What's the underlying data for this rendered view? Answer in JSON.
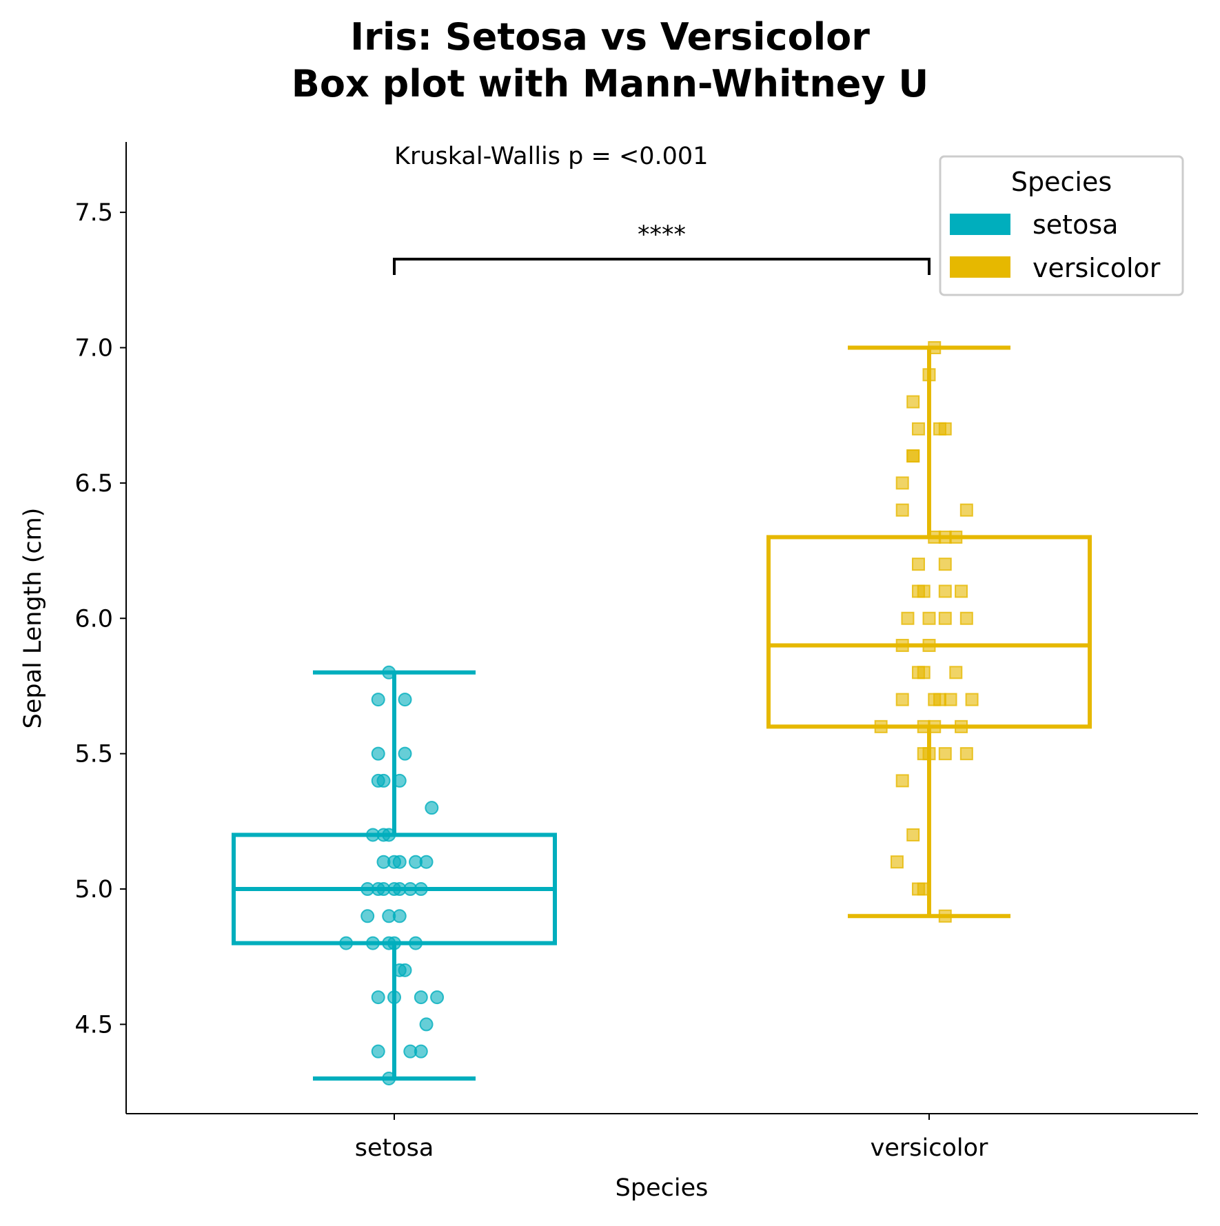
{
  "chart_data": {
    "type": "box",
    "title_lines": [
      "Iris: Setosa vs Versicolor",
      "Box plot with Mann-Whitney U"
    ],
    "xlabel": "Species",
    "ylabel": "Sepal Length (cm)",
    "categories": [
      "setosa",
      "versicolor"
    ],
    "ylim": [
      4.17,
      7.76
    ],
    "yticks": [
      4.5,
      5.0,
      5.5,
      6.0,
      6.5,
      7.0,
      7.5
    ],
    "ytick_labels": [
      "4.5",
      "5.0",
      "5.5",
      "6.0",
      "6.5",
      "7.0",
      "7.5"
    ],
    "grid": false,
    "legend": {
      "title": "Species",
      "placement": "top-right",
      "entries": [
        "setosa",
        "versicolor"
      ]
    },
    "annotations": {
      "overall_test": "Kruskal-Wallis p = <0.001",
      "pairwise_significance": "****"
    },
    "colors": {
      "setosa": "#00aebd",
      "versicolor": "#e6b800"
    },
    "series": [
      {
        "name": "setosa",
        "box": {
          "whisker_low": 4.3,
          "q1": 4.8,
          "median": 5.0,
          "q3": 5.2,
          "whisker_high": 5.8
        },
        "marker": "circle",
        "points": [
          {
            "x": -0.01,
            "y": 5.8
          },
          {
            "x": -0.03,
            "y": 5.7
          },
          {
            "x": 0.02,
            "y": 5.7
          },
          {
            "x": -0.03,
            "y": 5.5
          },
          {
            "x": 0.02,
            "y": 5.5
          },
          {
            "x": -0.03,
            "y": 5.4
          },
          {
            "x": -0.02,
            "y": 5.4
          },
          {
            "x": 0.01,
            "y": 5.4
          },
          {
            "x": 0.07,
            "y": 5.3
          },
          {
            "x": -0.04,
            "y": 5.2
          },
          {
            "x": -0.02,
            "y": 5.2
          },
          {
            "x": -0.01,
            "y": 5.2
          },
          {
            "x": -0.02,
            "y": 5.1
          },
          {
            "x": 0.0,
            "y": 5.1
          },
          {
            "x": 0.01,
            "y": 5.1
          },
          {
            "x": 0.04,
            "y": 5.1
          },
          {
            "x": 0.06,
            "y": 5.1
          },
          {
            "x": -0.05,
            "y": 5.0
          },
          {
            "x": -0.03,
            "y": 5.0
          },
          {
            "x": -0.02,
            "y": 5.0
          },
          {
            "x": 0.0,
            "y": 5.0
          },
          {
            "x": 0.01,
            "y": 5.0
          },
          {
            "x": 0.03,
            "y": 5.0
          },
          {
            "x": 0.05,
            "y": 5.0
          },
          {
            "x": -0.05,
            "y": 4.9
          },
          {
            "x": -0.01,
            "y": 4.9
          },
          {
            "x": 0.01,
            "y": 4.9
          },
          {
            "x": -0.09,
            "y": 4.8
          },
          {
            "x": -0.04,
            "y": 4.8
          },
          {
            "x": -0.01,
            "y": 4.8
          },
          {
            "x": 0.0,
            "y": 4.8
          },
          {
            "x": 0.04,
            "y": 4.8
          },
          {
            "x": 0.01,
            "y": 4.7
          },
          {
            "x": 0.02,
            "y": 4.7
          },
          {
            "x": -0.03,
            "y": 4.6
          },
          {
            "x": 0.0,
            "y": 4.6
          },
          {
            "x": 0.05,
            "y": 4.6
          },
          {
            "x": 0.08,
            "y": 4.6
          },
          {
            "x": 0.06,
            "y": 4.5
          },
          {
            "x": -0.03,
            "y": 4.4
          },
          {
            "x": 0.03,
            "y": 4.4
          },
          {
            "x": 0.05,
            "y": 4.4
          },
          {
            "x": -0.01,
            "y": 4.3
          }
        ]
      },
      {
        "name": "versicolor",
        "box": {
          "whisker_low": 4.9,
          "q1": 5.6,
          "median": 5.9,
          "q3": 6.3,
          "whisker_high": 7.0
        },
        "marker": "square",
        "points": [
          {
            "x": 0.01,
            "y": 7.0
          },
          {
            "x": 0.0,
            "y": 6.9
          },
          {
            "x": -0.03,
            "y": 6.8
          },
          {
            "x": -0.02,
            "y": 6.7
          },
          {
            "x": 0.02,
            "y": 6.7
          },
          {
            "x": 0.03,
            "y": 6.7
          },
          {
            "x": -0.03,
            "y": 6.6
          },
          {
            "x": -0.03,
            "y": 6.6
          },
          {
            "x": -0.05,
            "y": 6.5
          },
          {
            "x": -0.05,
            "y": 6.4
          },
          {
            "x": 0.07,
            "y": 6.4
          },
          {
            "x": 0.01,
            "y": 6.3
          },
          {
            "x": 0.03,
            "y": 6.3
          },
          {
            "x": 0.05,
            "y": 6.3
          },
          {
            "x": -0.02,
            "y": 6.2
          },
          {
            "x": 0.03,
            "y": 6.2
          },
          {
            "x": -0.02,
            "y": 6.1
          },
          {
            "x": -0.01,
            "y": 6.1
          },
          {
            "x": 0.03,
            "y": 6.1
          },
          {
            "x": 0.06,
            "y": 6.1
          },
          {
            "x": -0.04,
            "y": 6.0
          },
          {
            "x": 0.0,
            "y": 6.0
          },
          {
            "x": 0.03,
            "y": 6.0
          },
          {
            "x": 0.07,
            "y": 6.0
          },
          {
            "x": -0.05,
            "y": 5.9
          },
          {
            "x": 0.0,
            "y": 5.9
          },
          {
            "x": -0.02,
            "y": 5.8
          },
          {
            "x": -0.01,
            "y": 5.8
          },
          {
            "x": 0.05,
            "y": 5.8
          },
          {
            "x": -0.05,
            "y": 5.7
          },
          {
            "x": 0.01,
            "y": 5.7
          },
          {
            "x": 0.02,
            "y": 5.7
          },
          {
            "x": 0.04,
            "y": 5.7
          },
          {
            "x": 0.08,
            "y": 5.7
          },
          {
            "x": -0.09,
            "y": 5.6
          },
          {
            "x": -0.01,
            "y": 5.6
          },
          {
            "x": 0.01,
            "y": 5.6
          },
          {
            "x": 0.06,
            "y": 5.6
          },
          {
            "x": -0.01,
            "y": 5.5
          },
          {
            "x": 0.0,
            "y": 5.5
          },
          {
            "x": 0.03,
            "y": 5.5
          },
          {
            "x": 0.07,
            "y": 5.5
          },
          {
            "x": -0.05,
            "y": 5.4
          },
          {
            "x": -0.03,
            "y": 5.2
          },
          {
            "x": -0.06,
            "y": 5.1
          },
          {
            "x": -0.02,
            "y": 5.0
          },
          {
            "x": -0.01,
            "y": 5.0
          },
          {
            "x": 0.03,
            "y": 4.9
          }
        ]
      }
    ]
  }
}
